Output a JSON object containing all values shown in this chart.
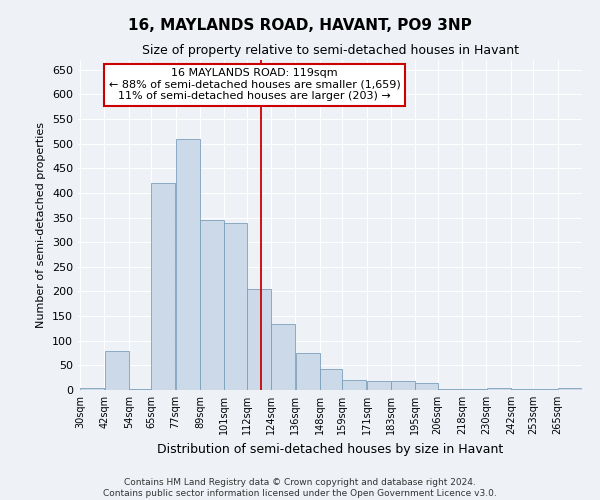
{
  "title": "16, MAYLANDS ROAD, HAVANT, PO9 3NP",
  "subtitle": "Size of property relative to semi-detached houses in Havant",
  "xlabel": "Distribution of semi-detached houses by size in Havant",
  "ylabel": "Number of semi-detached properties",
  "footer_line1": "Contains HM Land Registry data © Crown copyright and database right 2024.",
  "footer_line2": "Contains public sector information licensed under the Open Government Licence v3.0.",
  "annotation_line1": "16 MAYLANDS ROAD: 119sqm",
  "annotation_line2": "← 88% of semi-detached houses are smaller (1,659)",
  "annotation_line3": "11% of semi-detached houses are larger (203) →",
  "property_size": 119,
  "bar_color": "#ccd9e8",
  "bar_edge_color": "#7aa0bb",
  "vline_color": "#cc0000",
  "annotation_box_color": "#cc0000",
  "background_color": "#eef2f7",
  "grid_color": "#ffffff",
  "categories": [
    "30sqm",
    "42sqm",
    "54sqm",
    "65sqm",
    "77sqm",
    "89sqm",
    "101sqm",
    "112sqm",
    "124sqm",
    "136sqm",
    "148sqm",
    "159sqm",
    "171sqm",
    "183sqm",
    "195sqm",
    "206sqm",
    "218sqm",
    "230sqm",
    "242sqm",
    "253sqm",
    "265sqm"
  ],
  "bin_edges": [
    30,
    42,
    54,
    65,
    77,
    89,
    101,
    112,
    124,
    136,
    148,
    159,
    171,
    183,
    195,
    206,
    218,
    230,
    242,
    253,
    265,
    277
  ],
  "values": [
    5,
    80,
    3,
    420,
    510,
    345,
    340,
    205,
    135,
    75,
    42,
    20,
    18,
    18,
    15,
    2,
    2,
    5,
    2,
    2,
    5
  ],
  "ylim": [
    0,
    670
  ],
  "yticks": [
    0,
    50,
    100,
    150,
    200,
    250,
    300,
    350,
    400,
    450,
    500,
    550,
    600,
    650
  ]
}
